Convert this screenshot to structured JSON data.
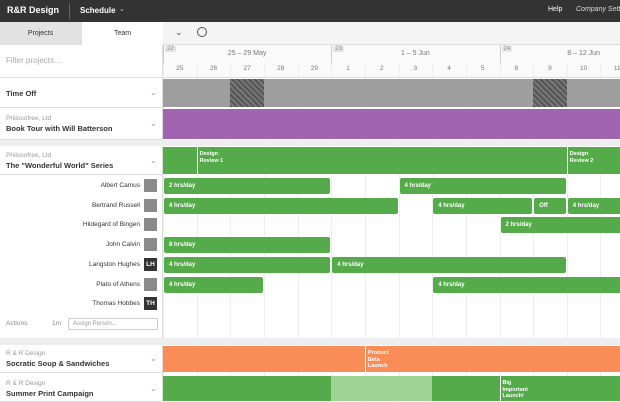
{
  "topbar": {
    "brand": "R&R Design",
    "menu": "Schedule",
    "help": "Help",
    "settings": "Company Settings"
  },
  "tabs": [
    "Projects",
    "Team"
  ],
  "filter_placeholder": "Filter projects...",
  "weeks": [
    {
      "number": "22",
      "range": "25 – 29 May"
    },
    {
      "number": "23",
      "range": "1 – 5 Jun"
    },
    {
      "number": "24",
      "range": "8 – 12 Jun"
    }
  ],
  "days": [
    "25",
    "26",
    "27",
    "28",
    "29",
    "1",
    "2",
    "3",
    "4",
    "5",
    "8",
    "9",
    "10",
    "11"
  ],
  "projects": [
    {
      "title": "Time Off"
    },
    {
      "client": "Philosofree, Ltd",
      "title": "Book Tour with Will Batterson"
    },
    {
      "client": "Philosofree, Ltd",
      "title": "The \"Wonderful World\" Series",
      "milestones": [
        "Design Review 1",
        "Design Review 2"
      ]
    },
    {
      "client": "R & R Design",
      "title": "Socratic Soup & Sandwiches",
      "milestones": [
        "Product Beta Launch"
      ]
    },
    {
      "client": "R & R Design",
      "title": "Summer Print Campaign",
      "milestones": [
        "Big Important Launch!"
      ]
    }
  ],
  "people": [
    {
      "name": "Albert Camus",
      "bookings": [
        "2 hrs/day",
        "4 hrs/day"
      ]
    },
    {
      "name": "Bertrand Russell",
      "bookings": [
        "4 hrs/day",
        "4 hrs/day",
        "Off",
        "4 hrs/day"
      ]
    },
    {
      "name": "Hildegard of Bingen",
      "bookings": [
        "2 hrs/day"
      ]
    },
    {
      "name": "John Calvin",
      "bookings": [
        "8 hrs/day"
      ]
    },
    {
      "name": "Langston Hughes",
      "initials": "LH",
      "bookings": [
        "4 hrs/day",
        "4 hrs/day"
      ]
    },
    {
      "name": "Plato of Athens",
      "bookings": [
        "4 hrs/day",
        "4 hrs/day"
      ]
    },
    {
      "name": "Thomas Hobbes",
      "initials": "TH",
      "bookings": []
    }
  ],
  "actions": {
    "menu": "Actions",
    "duration": "1m",
    "assign": "Assign Person..."
  }
}
